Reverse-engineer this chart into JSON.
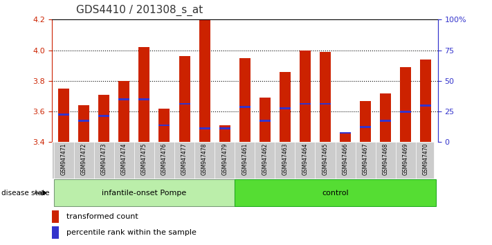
{
  "title": "GDS4410 / 201308_s_at",
  "samples": [
    "GSM947471",
    "GSM947472",
    "GSM947473",
    "GSM947474",
    "GSM947475",
    "GSM947476",
    "GSM947477",
    "GSM947478",
    "GSM947479",
    "GSM947461",
    "GSM947462",
    "GSM947463",
    "GSM947464",
    "GSM947465",
    "GSM947466",
    "GSM947467",
    "GSM947468",
    "GSM947469",
    "GSM947470"
  ],
  "bar_tops": [
    3.75,
    3.64,
    3.71,
    3.8,
    4.02,
    3.62,
    3.96,
    4.2,
    3.51,
    3.95,
    3.69,
    3.86,
    4.0,
    3.99,
    3.46,
    3.67,
    3.72,
    3.89,
    3.94
  ],
  "blue_markers": [
    3.58,
    3.54,
    3.57,
    3.68,
    3.68,
    3.51,
    3.65,
    3.49,
    3.49,
    3.63,
    3.54,
    3.62,
    3.65,
    3.65,
    3.46,
    3.5,
    3.54,
    3.6,
    3.64
  ],
  "bar_bottom": 3.4,
  "ylim_left": [
    3.4,
    4.2
  ],
  "ylim_right": [
    0,
    100
  ],
  "right_ticks": [
    0,
    25,
    50,
    75,
    100
  ],
  "right_tick_labels": [
    "0",
    "25",
    "50",
    "75",
    "100%"
  ],
  "left_ticks": [
    3.4,
    3.6,
    3.8,
    4.0,
    4.2
  ],
  "grid_values": [
    3.6,
    3.8,
    4.0
  ],
  "bar_color": "#cc2200",
  "blue_color": "#3333cc",
  "group1_label": "infantile-onset Pompe",
  "group2_label": "control",
  "group1_count": 9,
  "group2_count": 10,
  "group1_color": "#bbeeaa",
  "group2_color": "#55dd33",
  "disease_state_label": "disease state",
  "legend1": "transformed count",
  "legend2": "percentile rank within the sample",
  "title_color": "#333333",
  "axis_left_color": "#cc2200",
  "axis_right_color": "#3333cc",
  "tick_color_left": "#cc2200",
  "tick_color_right": "#3333cc",
  "background_color": "#ffffff",
  "sample_area_color": "#cccccc"
}
